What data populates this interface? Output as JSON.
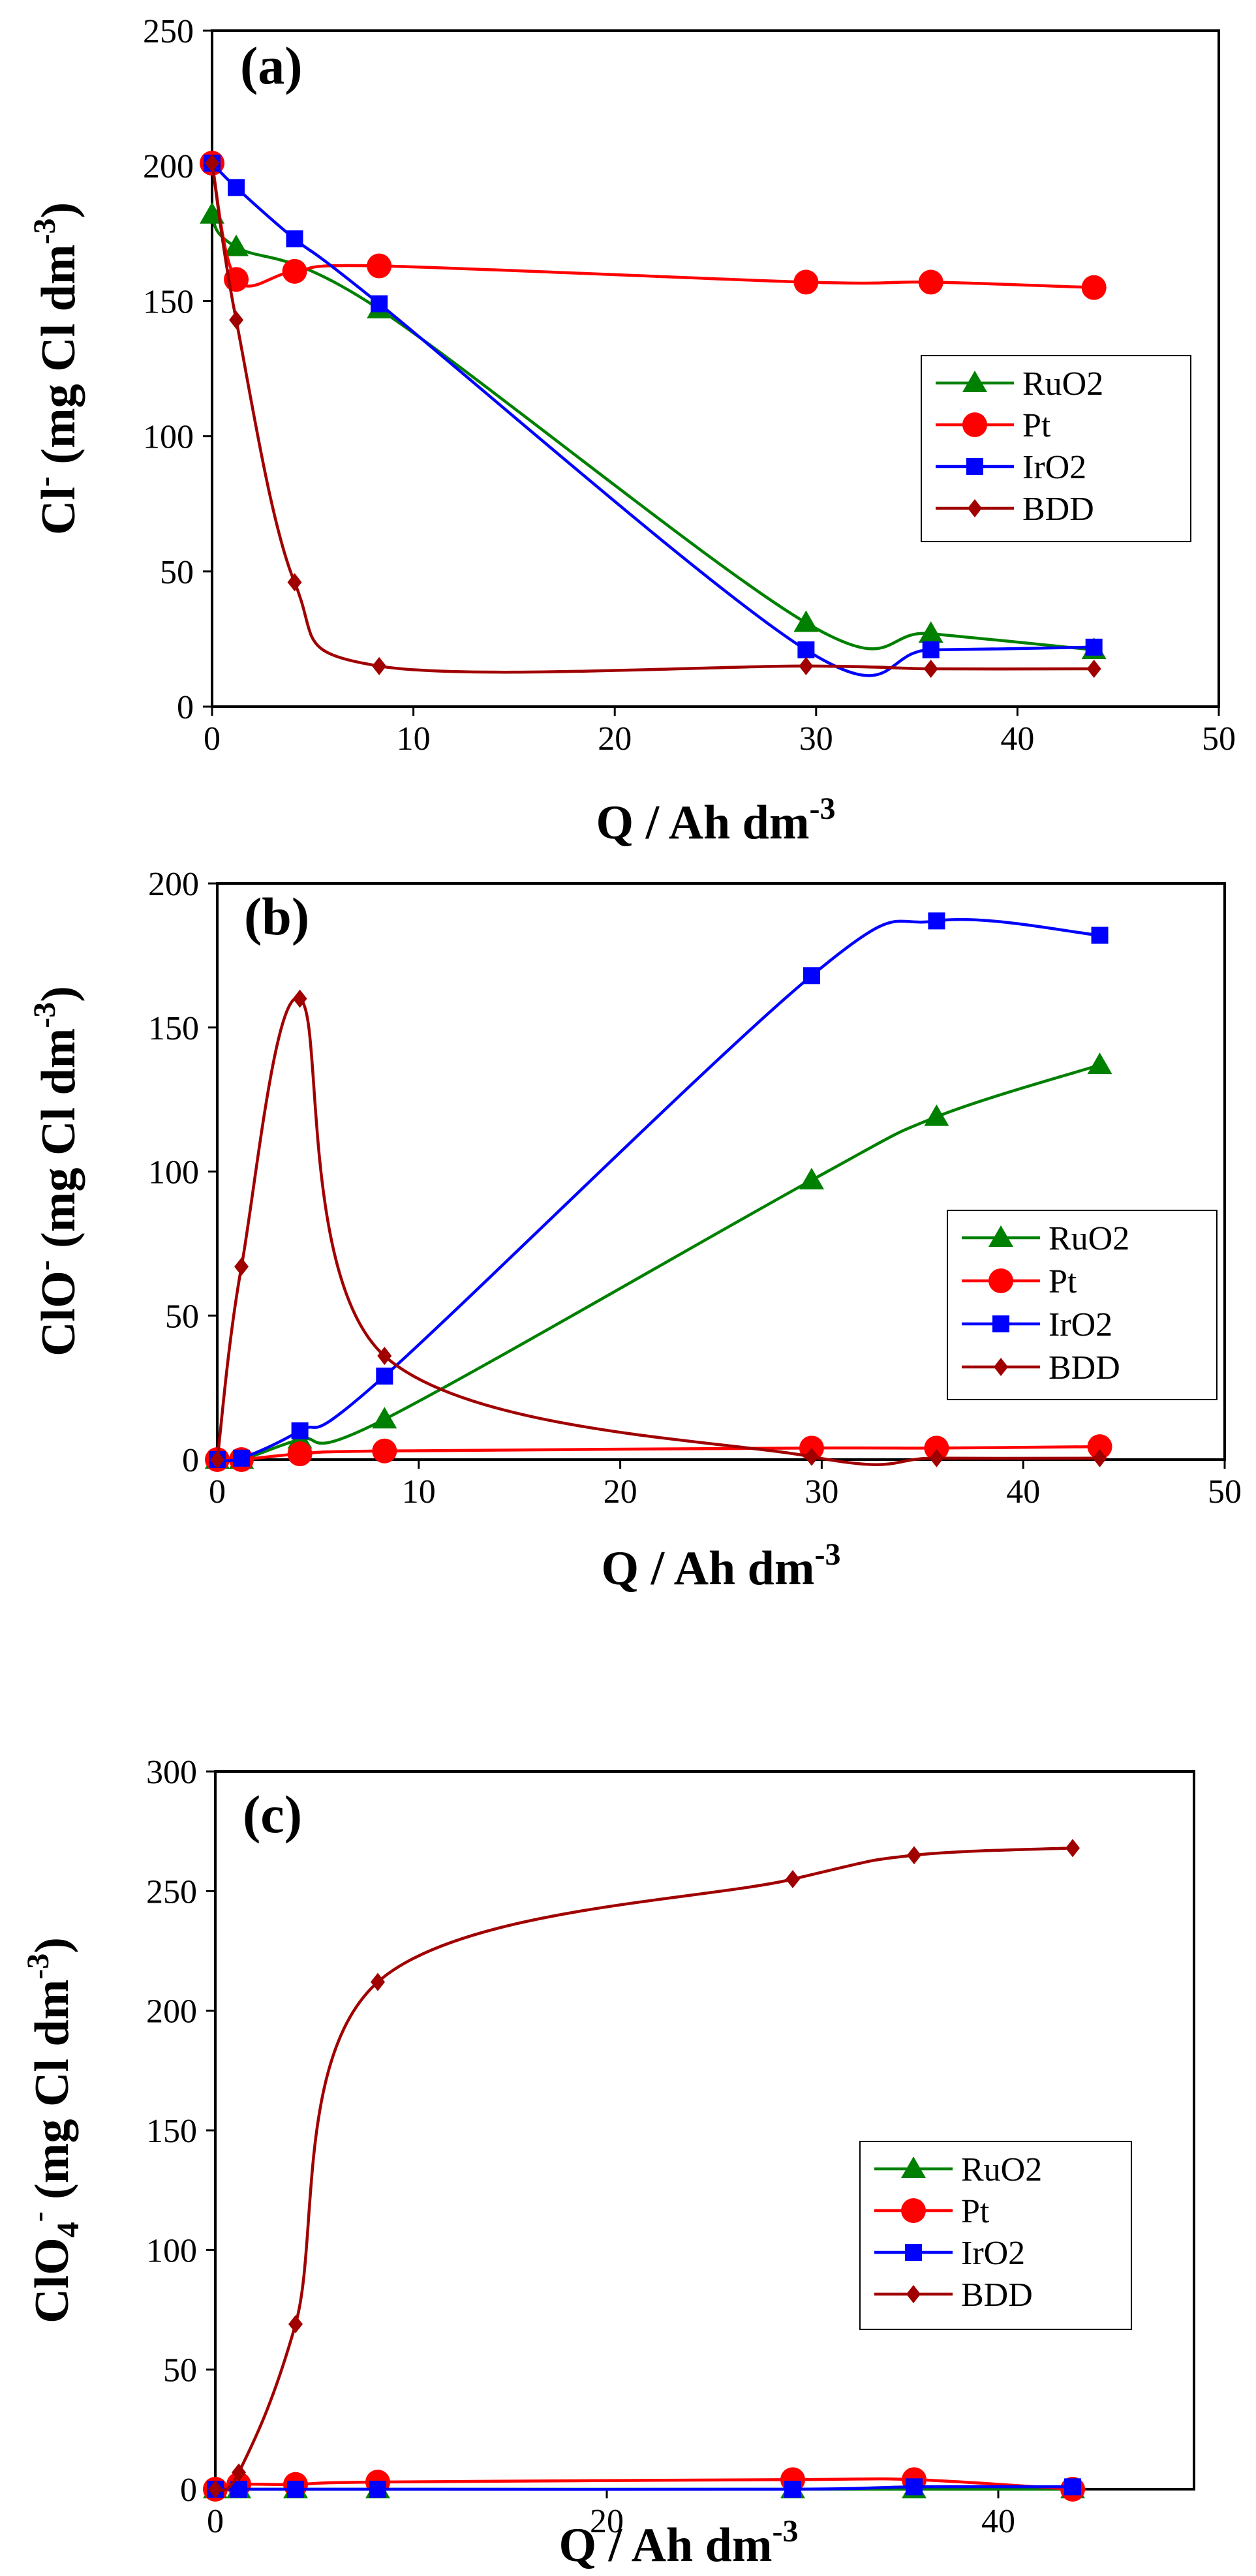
{
  "chart_data": [
    {
      "type": "line",
      "panel_label": "(a)",
      "xlabel": "Q / Ah dm-3",
      "xlabel_parts": [
        "Q / Ah dm",
        "-3"
      ],
      "ylabel_parts": [
        "Cl",
        "-",
        " (mg Cl dm",
        "-3",
        ")"
      ],
      "xlim": [
        0,
        50
      ],
      "ylim": [
        0,
        250
      ],
      "xticks": [
        0,
        10,
        20,
        30,
        40,
        50
      ],
      "yticks": [
        0,
        50,
        100,
        150,
        200,
        250
      ],
      "legend_position": "middle-right",
      "series": [
        {
          "name": "RuO2",
          "color": "#008000",
          "marker": "triangle",
          "x": [
            0,
            1.2,
            8.3,
            29.5,
            35.7,
            43.8
          ],
          "values": [
            182,
            170,
            147,
            31,
            27,
            21
          ]
        },
        {
          "name": "Pt",
          "color": "#ff0000",
          "marker": "circle",
          "x": [
            0,
            1.2,
            4.1,
            8.3,
            29.5,
            35.7,
            43.8
          ],
          "values": [
            201,
            158,
            161,
            163,
            157,
            157,
            155
          ]
        },
        {
          "name": "IrO2",
          "color": "#0000ff",
          "marker": "square",
          "x": [
            0,
            1.2,
            4.1,
            8.3,
            29.5,
            35.7,
            43.8
          ],
          "values": [
            201,
            192,
            173,
            149,
            21,
            21,
            22
          ]
        },
        {
          "name": "BDD",
          "color": "#a00000",
          "marker": "diamond",
          "x": [
            0,
            1.2,
            4.1,
            8.3,
            29.5,
            35.7,
            43.8
          ],
          "values": [
            201,
            143,
            46,
            15,
            15,
            14,
            14
          ]
        }
      ]
    },
    {
      "type": "line",
      "panel_label": "(b)",
      "xlabel": "Q / Ah dm-3",
      "xlabel_parts": [
        "Q / Ah dm",
        "-3"
      ],
      "ylabel_parts": [
        "ClO",
        "-",
        " (mg Cl dm",
        "-3",
        ")"
      ],
      "xlim": [
        0,
        50
      ],
      "ylim": [
        0,
        200
      ],
      "xticks": [
        0,
        10,
        20,
        30,
        40,
        50
      ],
      "yticks": [
        0,
        50,
        100,
        150,
        200
      ],
      "legend_position": "middle-right",
      "series": [
        {
          "name": "RuO2",
          "color": "#008000",
          "marker": "triangle",
          "x": [
            0,
            1.2,
            4.1,
            8.3,
            29.5,
            35.7,
            43.8
          ],
          "values": [
            0,
            0,
            7,
            14,
            97,
            119,
            137
          ]
        },
        {
          "name": "Pt",
          "color": "#ff0000",
          "marker": "circle",
          "x": [
            0,
            1.2,
            4.1,
            8.3,
            29.5,
            35.7,
            43.8
          ],
          "values": [
            0,
            0,
            2,
            3,
            4,
            4,
            4.5
          ]
        },
        {
          "name": "IrO2",
          "color": "#0000ff",
          "marker": "square",
          "x": [
            0,
            1.2,
            4.1,
            8.3,
            29.5,
            35.7,
            43.8
          ],
          "values": [
            0,
            0.5,
            10,
            29,
            168,
            187,
            182
          ]
        },
        {
          "name": "BDD",
          "color": "#a00000",
          "marker": "diamond",
          "x": [
            0,
            1.2,
            4.1,
            8.3,
            29.5,
            35.7,
            43.8
          ],
          "values": [
            0,
            67,
            160,
            36,
            1,
            0.5,
            0.5
          ]
        }
      ]
    },
    {
      "type": "line",
      "panel_label": "(c)",
      "xlabel": "Q / Ah dm-3",
      "xlabel_parts": [
        "Q / Ah dm",
        "-3"
      ],
      "ylabel_parts": [
        "ClO",
        "4",
        "-",
        " (mg Cl dm",
        "-3",
        ")"
      ],
      "xlim": [
        0,
        50
      ],
      "ylim": [
        0,
        300
      ],
      "xticks": [
        0,
        20,
        40
      ],
      "yticks": [
        0,
        50,
        100,
        150,
        200,
        250,
        300
      ],
      "legend_position": "middle-right",
      "series": [
        {
          "name": "RuO2",
          "color": "#008000",
          "marker": "triangle",
          "x": [
            0,
            1.2,
            4.1,
            8.3,
            29.5,
            35.7,
            43.8
          ],
          "values": [
            0,
            0,
            0,
            0,
            0,
            0,
            0
          ]
        },
        {
          "name": "Pt",
          "color": "#ff0000",
          "marker": "circle",
          "x": [
            0,
            1.2,
            4.1,
            8.3,
            29.5,
            35.7,
            43.8
          ],
          "values": [
            0,
            2,
            2,
            3,
            4,
            4,
            0
          ]
        },
        {
          "name": "IrO2",
          "color": "#0000ff",
          "marker": "square",
          "x": [
            0,
            1.2,
            4.1,
            8.3,
            29.5,
            35.7,
            43.8
          ],
          "values": [
            0,
            0,
            0,
            0,
            0,
            1,
            1
          ]
        },
        {
          "name": "BDD",
          "color": "#a00000",
          "marker": "diamond",
          "x": [
            0,
            1.2,
            4.1,
            8.3,
            29.5,
            35.7,
            43.8
          ],
          "values": [
            0,
            7,
            69,
            212,
            255,
            265,
            268
          ]
        }
      ]
    }
  ]
}
